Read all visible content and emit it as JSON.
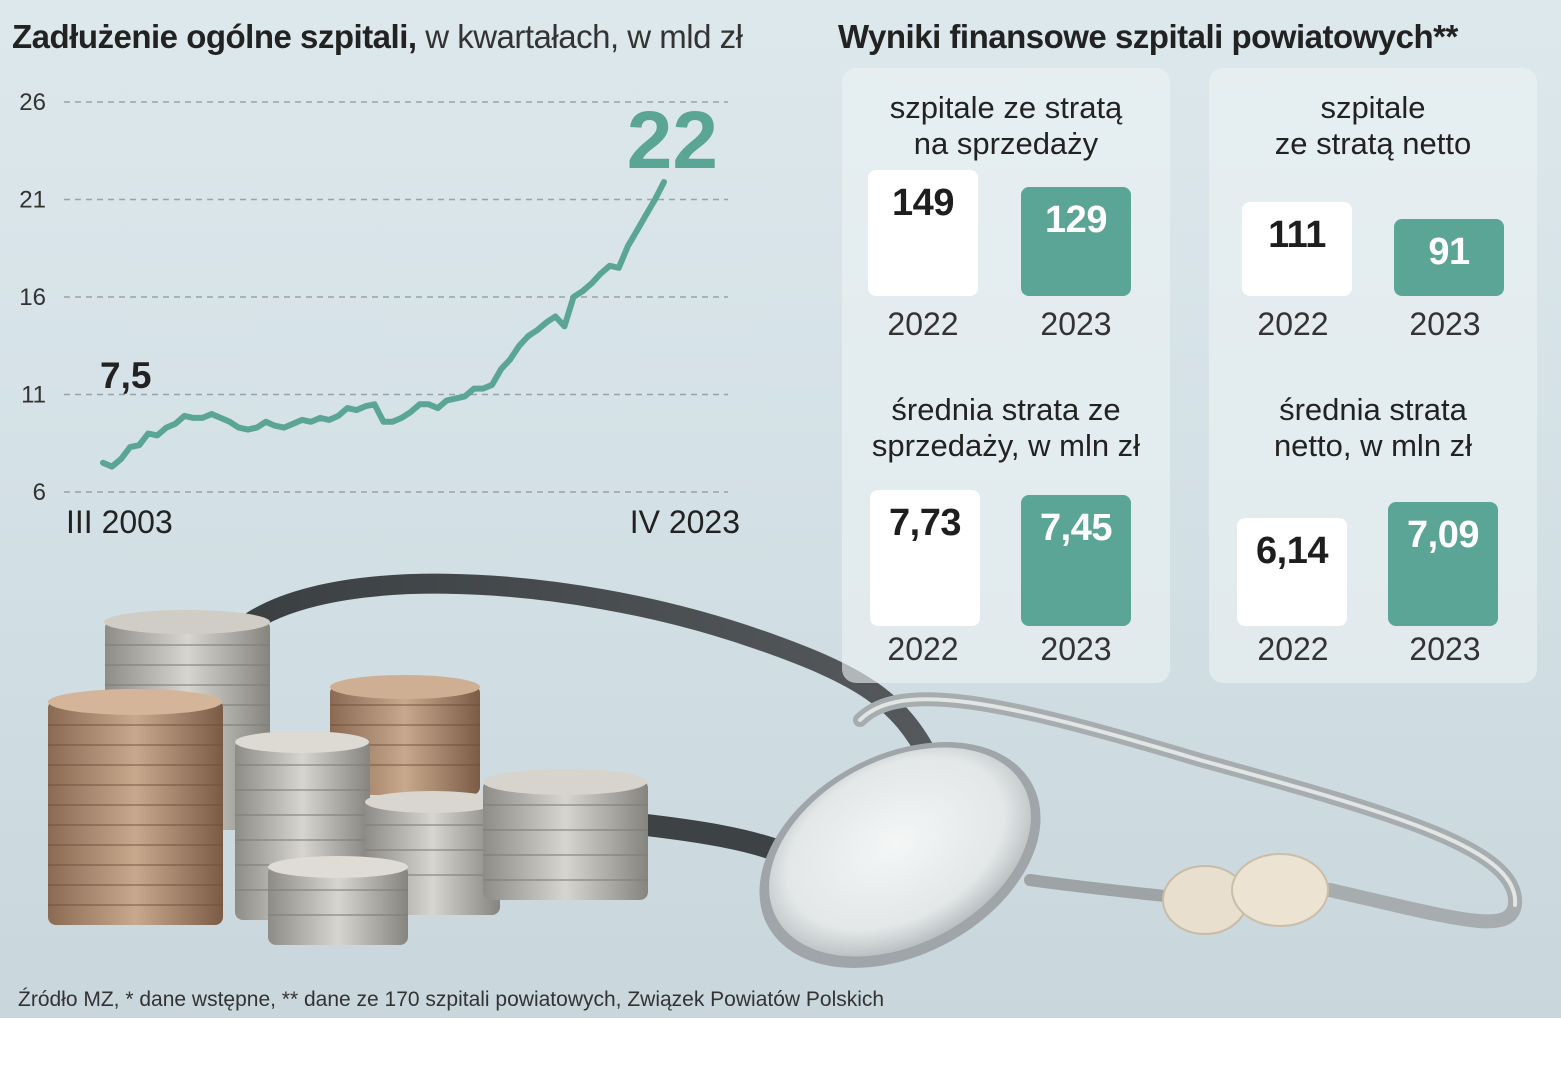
{
  "chart_data": [
    {
      "type": "line",
      "title": "Zadłużenie ogólne szpitali,",
      "subtitle": "w kwartałach, w mld zł",
      "color": "#5ba596",
      "ylim": [
        6,
        26
      ],
      "y_ticks": [
        "26",
        "21",
        "16",
        "11",
        "6"
      ],
      "x_labels": {
        "start": "III 2003",
        "end": "IV 2023"
      },
      "annotations": {
        "start_value": "7,5",
        "end_value": "22"
      },
      "series": [
        {
          "values": [
            7.5,
            7.3,
            7.7,
            8.3,
            8.4,
            9.0,
            8.9,
            9.3,
            9.5,
            9.9,
            9.8,
            9.8,
            10.0,
            9.8,
            9.6,
            9.3,
            9.2,
            9.3,
            9.6,
            9.4,
            9.3,
            9.5,
            9.7,
            9.6,
            9.8,
            9.7,
            9.9,
            10.3,
            10.2,
            10.4,
            10.5,
            9.6,
            9.6,
            9.8,
            10.1,
            10.5,
            10.5,
            10.3,
            10.7,
            10.8,
            10.9,
            11.3,
            11.3,
            11.5,
            12.3,
            12.8,
            13.5,
            14.0,
            14.3,
            14.7,
            15.0,
            14.5,
            16.0,
            16.3,
            16.7,
            17.2,
            17.6,
            17.5,
            18.6,
            19.4,
            20.2,
            21.0,
            21.9
          ]
        }
      ]
    },
    {
      "type": "bar",
      "title": "Wyniki finansowe szpitali powiatowych**",
      "categories": [
        "2022",
        "2023"
      ],
      "colors": {
        "2022": "#ffffff",
        "2023": "#5ba596"
      },
      "panels": [
        {
          "title_lines": [
            "szpitale ze stratą",
            "na sprzedaży"
          ],
          "values": [
            149,
            129
          ],
          "labels": [
            "149",
            "129"
          ]
        },
        {
          "title_lines": [
            "szpitale",
            "ze stratą netto"
          ],
          "values": [
            111,
            91
          ],
          "labels": [
            "111",
            "91"
          ]
        },
        {
          "title_lines": [
            "średnia strata ze",
            "sprzedaży, w mln zł"
          ],
          "values": [
            7.73,
            7.45
          ],
          "labels": [
            "7,73",
            "7,45"
          ]
        },
        {
          "title_lines": [
            "średnia strata",
            "netto, w mln zł"
          ],
          "values": [
            6.14,
            7.09
          ],
          "labels": [
            "6,14",
            "7,09"
          ]
        }
      ]
    }
  ],
  "source": "Źródło MZ, * dane wstępne, ** dane ze 170 szpitali powiatowych, Związek Powiatów Polskich"
}
